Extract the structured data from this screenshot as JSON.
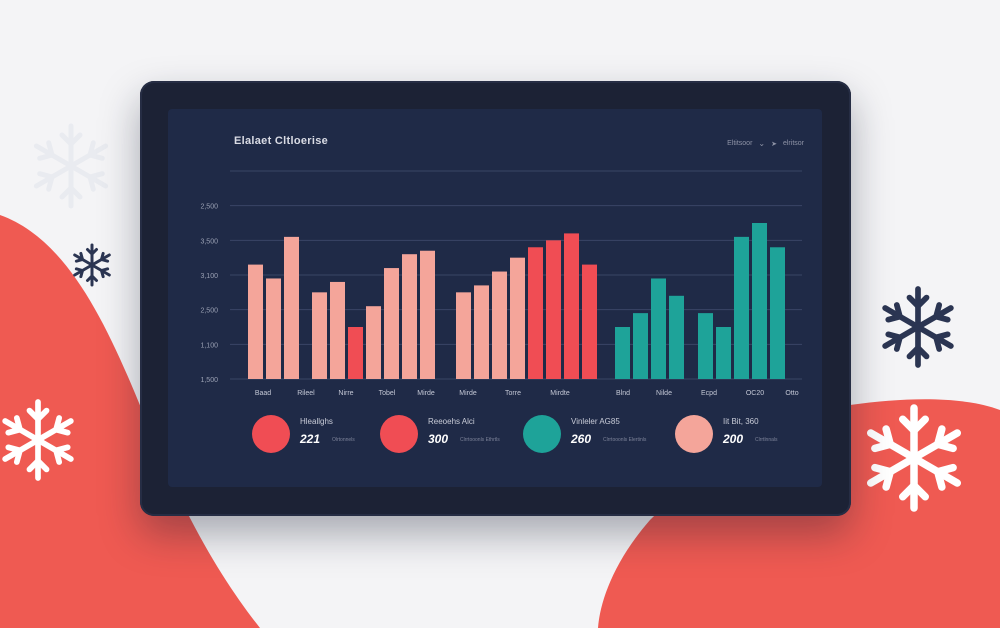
{
  "colors": {
    "accent_red": "#f04d54",
    "salmon": "#f4a59a",
    "teal": "#1ea399",
    "panel": "#1f2a47",
    "bezel": "#1c2235",
    "blob": "#ef5a52"
  },
  "header": {
    "title": "Elalaet Cltloerise",
    "filter_1": "Eltitsoor",
    "filter_2": "elritsor",
    "chevron_icon": "chevron-down-icon",
    "cursor_icon": "cursor-arrow-icon"
  },
  "chart_data": {
    "type": "bar",
    "ytick_labels": [
      "1,500",
      "1,100",
      "2,500",
      "3,100",
      "3,500",
      "2,500"
    ],
    "yticks": [
      0,
      1,
      2,
      3,
      4,
      5
    ],
    "ylim": [
      0,
      6
    ],
    "categories": [
      "Baad",
      "Rileel",
      "Nirre",
      "Tobel",
      "Mirde",
      "Mirde",
      "Torre",
      "Mirdte",
      "Blnd",
      "Nilde",
      "Ecpd",
      "OC20",
      "Otto"
    ],
    "groups": [
      {
        "color": "salmon",
        "values": [
          3.3,
          2.9,
          4.1
        ]
      },
      {
        "color": "salmon_red",
        "values": [
          2.5,
          2.8,
          1.5,
          2.1,
          3.2,
          3.6,
          3.7
        ]
      },
      {
        "color": "salmon_red",
        "values": [
          2.5,
          2.7,
          3.1,
          3.5,
          3.8,
          4.0,
          4.2,
          3.3
        ]
      },
      {
        "color": "teal",
        "values": [
          1.5,
          1.9,
          2.9,
          2.4
        ]
      },
      {
        "color": "teal",
        "values": [
          1.9,
          1.5,
          4.1,
          4.5,
          3.8
        ]
      }
    ]
  },
  "stats": [
    {
      "label": "Hleallghs",
      "value": "221",
      "sub": "Olrtonnels",
      "color": "#f04d54"
    },
    {
      "label": "Reeoehs Alci",
      "value": "300",
      "sub": "Clrrtooonls Ethrtls",
      "color": "#f04d54"
    },
    {
      "label": "Vinleler AG85",
      "value": "260",
      "sub": "Clrrtooonls Elertinls",
      "color": "#1ea399"
    },
    {
      "label": "Iit Bit, 360",
      "value": "200",
      "sub": "Clrrtlnnals",
      "color": "#f4a59a"
    }
  ],
  "decor": {
    "snowflake_icon": "snowflake-icon"
  }
}
